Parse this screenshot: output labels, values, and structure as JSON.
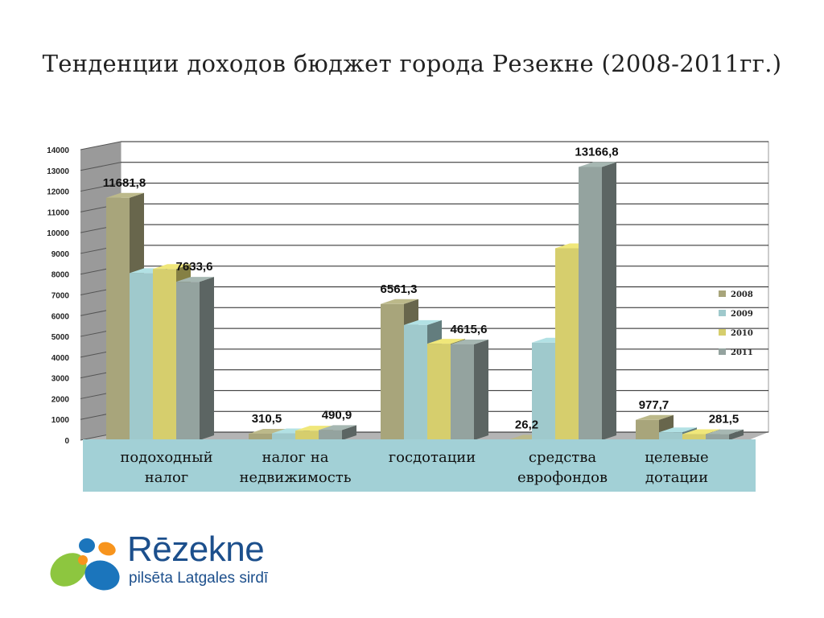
{
  "slide": {
    "title": "Тенденции доходов бюджет города Резекне (2008-2011гг.)"
  },
  "chart_data": {
    "type": "bar",
    "title": "",
    "categories": [
      "подоходный\nналог",
      "налог на\nнедвижимость",
      "госдотации",
      "средства\nеврофондов",
      "целевые\nдотации"
    ],
    "series": [
      {
        "name": "2008",
        "color": "#a8a57b",
        "values": [
          11681.8,
          310.5,
          6561.3,
          26.2,
          977.7
        ]
      },
      {
        "name": "2009",
        "color": "#9fc9cc",
        "values": [
          8050,
          330,
          5550,
          4700,
          380
        ]
      },
      {
        "name": "2010",
        "color": "#d6ce6d",
        "values": [
          8250,
          460,
          4650,
          9250,
          290
        ]
      },
      {
        "name": "2011",
        "color": "#94a39f",
        "values": [
          7633.6,
          490.9,
          4615.6,
          13166.8,
          281.5
        ]
      }
    ],
    "ylim": [
      0,
      14000
    ],
    "yticks": [
      0,
      1000,
      2000,
      3000,
      4000,
      5000,
      6000,
      7000,
      8000,
      9000,
      10000,
      11000,
      12000,
      13000,
      14000
    ],
    "data_labels": [
      {
        "text": "11681,8",
        "category": 0,
        "series": 0
      },
      {
        "text": "7633,6",
        "category": 0,
        "series": 3
      },
      {
        "text": "310,5",
        "category": 1,
        "series": 0
      },
      {
        "text": "490,9",
        "category": 1,
        "series": 3
      },
      {
        "text": "6561,3",
        "category": 2,
        "series": 0
      },
      {
        "text": "4615,6",
        "category": 2,
        "series": 3
      },
      {
        "text": "26,2",
        "category": 3,
        "series": 0
      },
      {
        "text": "13166,8",
        "category": 3,
        "series": 3
      },
      {
        "text": "977,7",
        "category": 4,
        "series": 0
      },
      {
        "text": "281,5",
        "category": 4,
        "series": 3
      }
    ],
    "legend": {
      "position": "right",
      "entries": [
        "2008",
        "2009",
        "2010",
        "2011"
      ]
    },
    "grid": true
  },
  "logo": {
    "name": "Rēzekne",
    "tagline": "pilsēta Latgales sirdī",
    "colors": {
      "blue": "#1b75bc",
      "green": "#8dc63f",
      "orange": "#f7941d",
      "navy": "#1c4f8c"
    }
  }
}
